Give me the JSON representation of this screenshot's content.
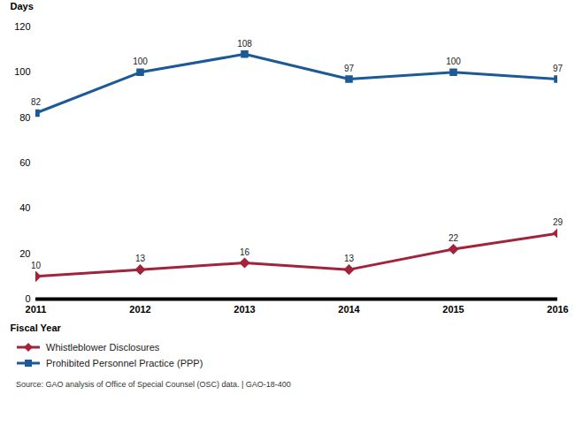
{
  "chart_data": {
    "type": "line",
    "x_label": "Fiscal Year",
    "y_label": "Days",
    "caption": "Source: GAO analysis of Office of Special Counsel (OSC) data. | GAO-18-400",
    "categories": [
      "2011",
      "2012",
      "2013",
      "2014",
      "2015",
      "2016"
    ],
    "series": [
      {
        "name": "Whistleblower Disclosures",
        "color": "#a2233a",
        "marker": "diamond",
        "values": [
          10,
          13,
          16,
          13,
          22,
          29
        ]
      },
      {
        "name": "Prohibited Personnel Practice (PPP)",
        "color": "#1c5a97",
        "marker": "square",
        "values": [
          82,
          100,
          108,
          97,
          100,
          97
        ]
      }
    ],
    "ylim": [
      0,
      120
    ],
    "yticks": [
      0,
      20,
      40,
      60,
      80,
      100,
      120
    ],
    "grid": false,
    "data_labels": true,
    "legend": "bottom-left"
  }
}
